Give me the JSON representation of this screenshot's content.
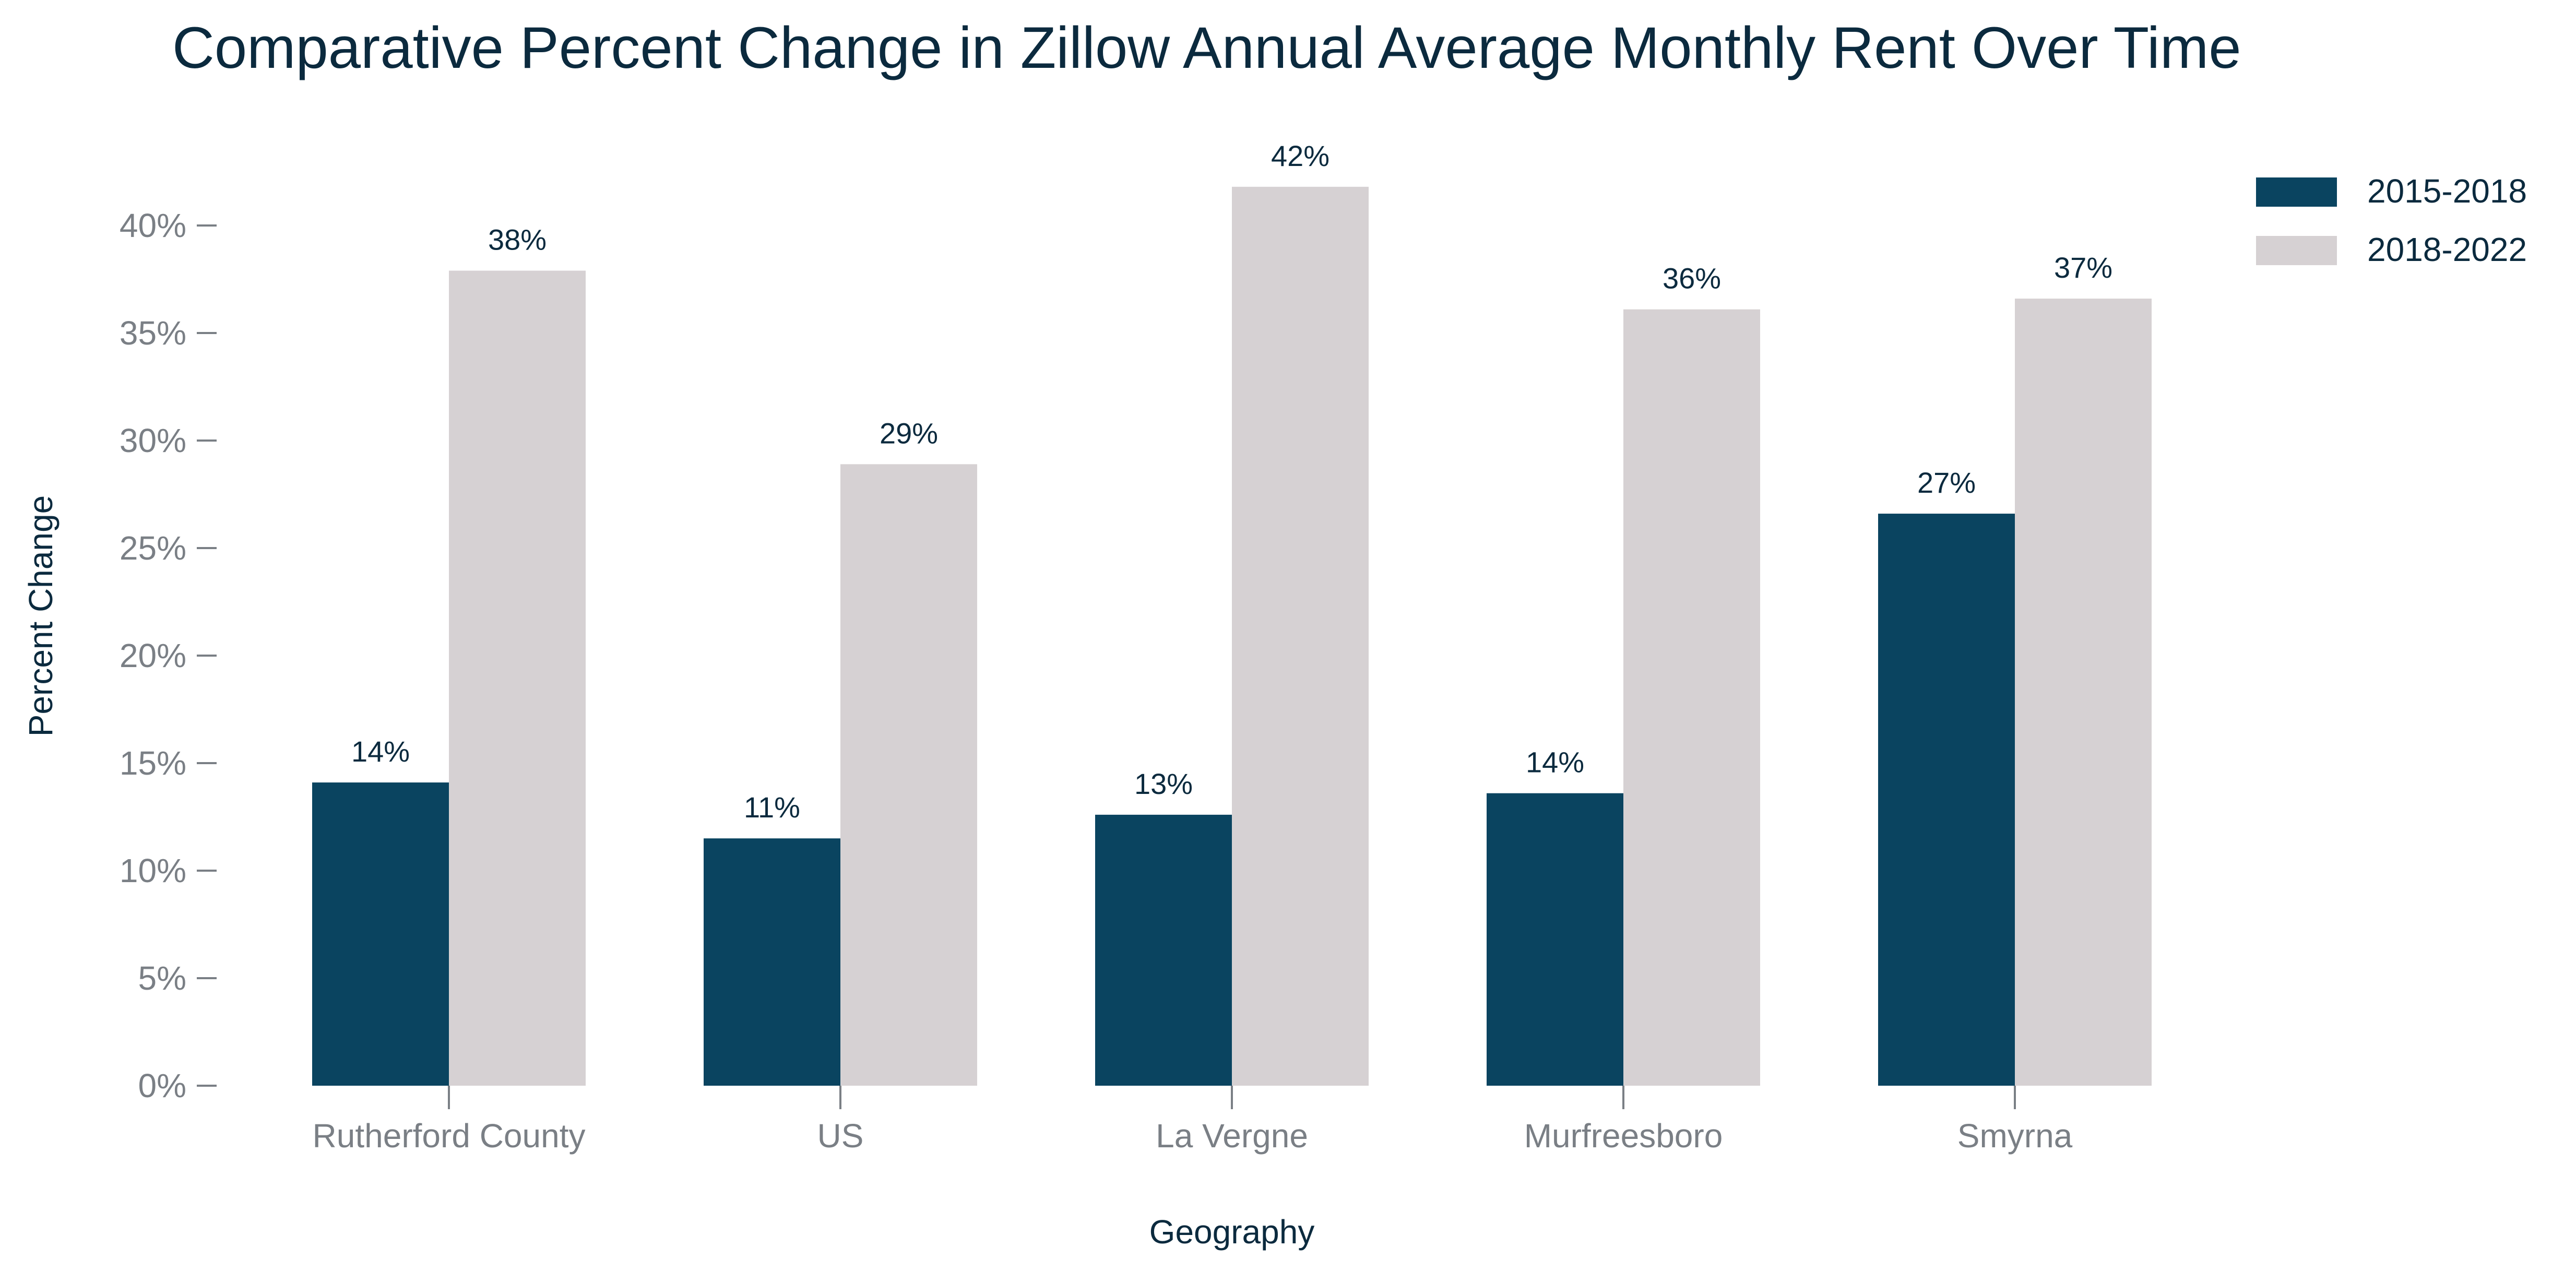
{
  "chart_data": {
    "type": "bar",
    "title": "Comparative Percent Change in Zillow Annual Average Monthly Rent Over Time",
    "xlabel": "Geography",
    "ylabel": "Percent Change",
    "categories": [
      "Rutherford County",
      "US",
      "La Vergne",
      "Murfreesboro",
      "Smyrna"
    ],
    "series": [
      {
        "name": "2015-2018",
        "values": [
          14.1,
          11.5,
          12.6,
          13.6,
          26.6
        ],
        "labels": [
          "14%",
          "11%",
          "13%",
          "14%",
          "27%"
        ],
        "color": "#0a4460"
      },
      {
        "name": "2018-2022",
        "values": [
          37.9,
          28.9,
          41.8,
          36.1,
          36.6
        ],
        "labels": [
          "38%",
          "29%",
          "42%",
          "36%",
          "37%"
        ],
        "color": "#d6d1d3"
      }
    ],
    "ylim": [
      0,
      42
    ],
    "yticks": [
      0,
      5,
      10,
      15,
      20,
      25,
      30,
      35,
      40
    ],
    "ytick_labels": [
      "0%",
      "5%",
      "10%",
      "15%",
      "20%",
      "25%",
      "30%",
      "35%",
      "40%"
    ],
    "grid": false,
    "legend_position": "top-right"
  }
}
